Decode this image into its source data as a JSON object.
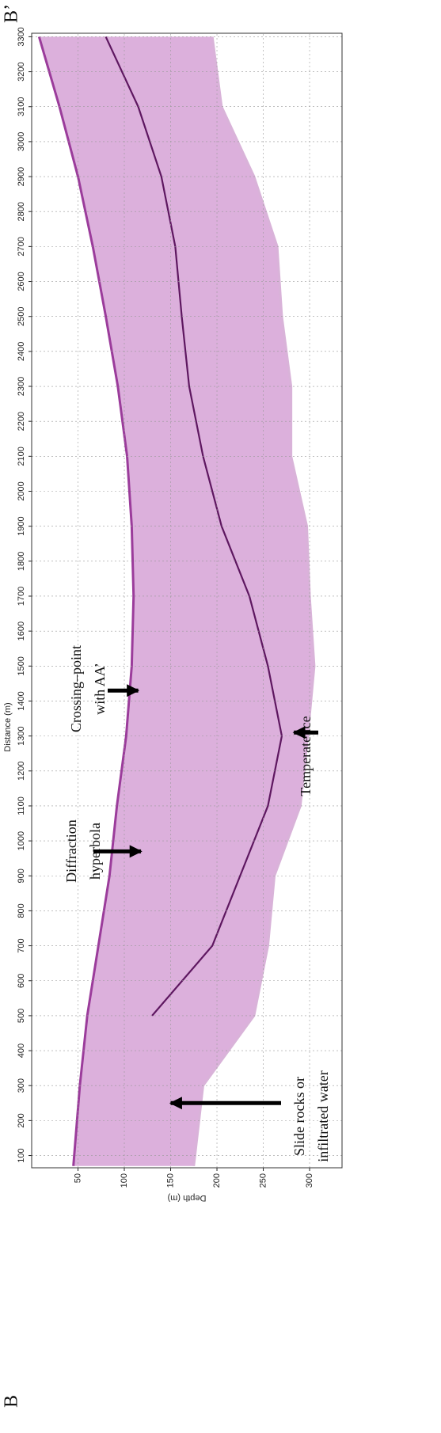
{
  "chart_data": {
    "type": "line",
    "xlabel": "Distance (m)",
    "ylabel": "Depth (m)",
    "x": [
      70,
      300,
      500,
      700,
      900,
      1100,
      1300,
      1500,
      1700,
      1900,
      2100,
      2300,
      2500,
      2700,
      2900,
      3100,
      3300
    ],
    "series": [
      {
        "color": "#9b3c9b",
        "values": [
          45,
          52,
          60,
          72,
          84,
          92,
          102,
          108,
          110,
          108,
          103,
          93,
          80,
          66,
          50,
          30,
          8
        ]
      },
      {
        "color": "#d9b3d9",
        "values": [
          175,
          185,
          240,
          255,
          262,
          290,
          298,
          305,
          300,
          297,
          280,
          280,
          270,
          265,
          240,
          205,
          195
        ]
      },
      {
        "color": "#5e1760",
        "values": [
          null,
          null,
          130,
          195,
          225,
          255,
          270,
          255,
          235,
          205,
          185,
          170,
          162,
          155,
          140,
          115,
          80
        ]
      }
    ],
    "fill_color": "#dcb0dc",
    "xlim": [
      65,
      3310
    ],
    "ylim": [
      0,
      335
    ],
    "y_inverted": true,
    "xticks": [
      100,
      200,
      300,
      400,
      500,
      600,
      700,
      800,
      900,
      1000,
      1100,
      1200,
      1300,
      1400,
      1500,
      1600,
      1700,
      1800,
      1900,
      2000,
      2100,
      2200,
      2300,
      2400,
      2500,
      2600,
      2700,
      2800,
      2900,
      3000,
      3100,
      3200,
      3300
    ],
    "yticks": [
      50,
      100,
      150,
      200,
      250,
      300
    ],
    "grid": true,
    "annotations": [
      {
        "lines": [
          "Slide rocks or",
          "infiltrated water"
        ],
        "x": 250,
        "y": 150
      },
      {
        "lines": [
          "Diffraction",
          "hyperbola"
        ],
        "x": 970,
        "y": 118
      },
      {
        "lines": [
          "Crossing–point",
          "with AA’"
        ],
        "x": 1430,
        "y": 115
      },
      {
        "lines": [
          "Temperate ice"
        ],
        "x": 1310,
        "y": 283
      }
    ],
    "start_label": "B",
    "end_label": "B’"
  }
}
